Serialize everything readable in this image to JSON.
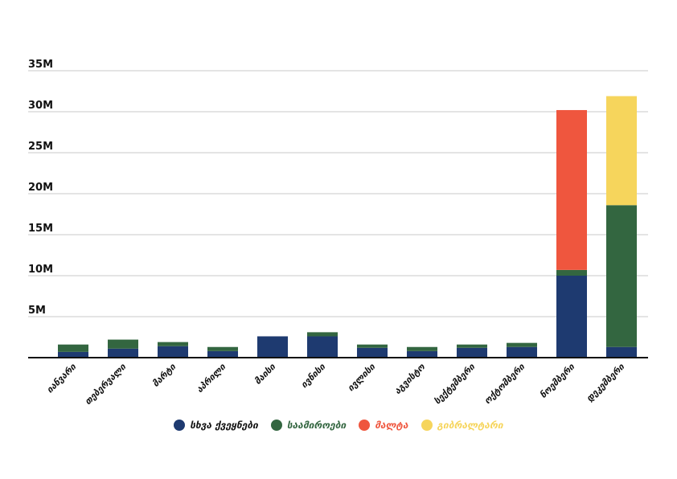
{
  "chart_data": {
    "type": "bar",
    "stacked": true,
    "categories": [
      "იანვარი",
      "თებერვალი",
      "მარტი",
      "აპრილი",
      "მაისი",
      "ივნისი",
      "ივლისი",
      "აგვისტო",
      "სექტემბერი",
      "ოქტომბერი",
      "ნოემბერი",
      "დეკემბერი"
    ],
    "series": [
      {
        "name": "სხვა ქვეყნები",
        "color": "#1e3a70",
        "values": [
          0.7,
          1.1,
          1.4,
          0.8,
          2.6,
          2.6,
          1.2,
          0.8,
          1.2,
          1.3,
          10.0,
          1.3
        ]
      },
      {
        "name": "საამიროები",
        "color": "#336640",
        "values": [
          0.9,
          1.1,
          0.5,
          0.5,
          0.0,
          0.5,
          0.4,
          0.5,
          0.4,
          0.5,
          0.7,
          17.3
        ]
      },
      {
        "name": "მალტა",
        "color": "#ef563e",
        "values": [
          0,
          0,
          0,
          0,
          0,
          0,
          0,
          0,
          0,
          0,
          19.5,
          0
        ]
      },
      {
        "name": "გიბრალტარი",
        "color": "#f6d55c",
        "values": [
          0,
          0,
          0,
          0,
          0,
          0,
          0,
          0,
          0,
          0,
          0,
          13.3
        ]
      }
    ],
    "yticks": [
      "5M",
      "10M",
      "15M",
      "20M",
      "25M",
      "30M",
      "35M"
    ],
    "ylim": [
      0,
      35
    ],
    "grid": true,
    "legend_position": "bottom"
  }
}
